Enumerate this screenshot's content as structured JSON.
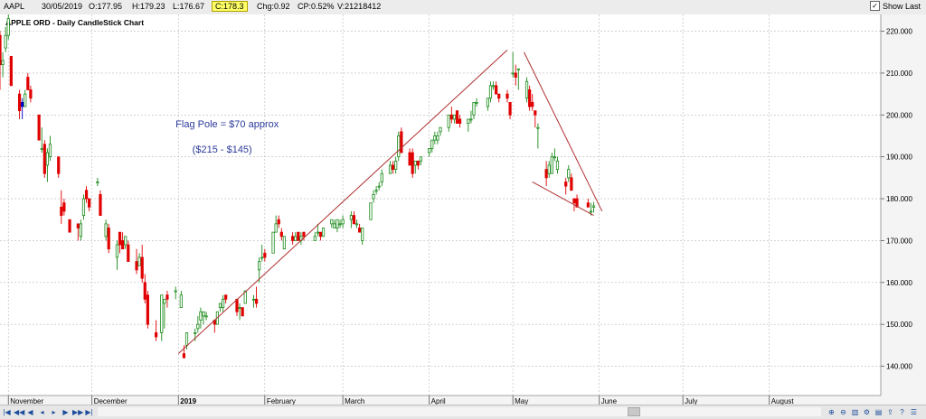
{
  "header": {
    "symbol": "AAPL",
    "date": "30/05/2019",
    "open": "O:177.95",
    "high": "H:179.23",
    "low": "L:176.67",
    "close": "C:178.3",
    "change": "Chg:0.92",
    "change_pct": "CP:0.52%",
    "volume": "V:21218412",
    "show_last_label": "Show Last",
    "show_last_checked": true
  },
  "chart_data": {
    "type": "candlestick",
    "title": "APPLE ORD - Daily CandleStick Chart",
    "ylim": [
      133,
      224
    ],
    "yticks": [
      140,
      150,
      160,
      170,
      180,
      190,
      200,
      210,
      220
    ],
    "ytick_labels": [
      "140.000",
      "150.000",
      "160.000",
      "170.000",
      "180.000",
      "190.000",
      "200.000",
      "210.000",
      "220.000"
    ],
    "x_range": [
      "2018-10-29",
      "2019-09-10"
    ],
    "month_labels": [
      {
        "date": "2018-11-01",
        "label": "November"
      },
      {
        "date": "2018-12-01",
        "label": "December"
      },
      {
        "date": "2019-01-01",
        "label": "2019",
        "bold": true
      },
      {
        "date": "2019-02-01",
        "label": "February"
      },
      {
        "date": "2019-03-01",
        "label": "March"
      },
      {
        "date": "2019-04-01",
        "label": "April"
      },
      {
        "date": "2019-05-01",
        "label": "May"
      },
      {
        "date": "2019-06-01",
        "label": "June"
      },
      {
        "date": "2019-07-01",
        "label": "July"
      },
      {
        "date": "2019-08-01",
        "label": "August"
      }
    ],
    "grid": true,
    "colors": {
      "up": "#1a8a1a",
      "down": "#e00000",
      "doji": "#0000cc",
      "trend": "#b03030",
      "annotation": "#2b3a9a"
    },
    "candles": [
      {
        "d": "2018-10-29",
        "o": 219,
        "h": 220,
        "l": 206,
        "c": 212
      },
      {
        "d": "2018-10-30",
        "o": 212,
        "h": 215,
        "l": 209,
        "c": 213
      },
      {
        "d": "2018-10-31",
        "o": 216,
        "h": 221,
        "l": 215,
        "c": 219
      },
      {
        "d": "2018-11-01",
        "o": 219,
        "h": 224,
        "l": 218,
        "c": 223
      },
      {
        "d": "2018-11-02",
        "o": 214,
        "h": 214,
        "l": 207,
        "c": 207
      },
      {
        "d": "2018-11-05",
        "o": 205,
        "h": 206,
        "l": 199,
        "c": 201
      },
      {
        "d": "2018-11-06",
        "o": 202,
        "h": 204,
        "l": 199,
        "c": 203,
        "doji": true
      },
      {
        "d": "2018-11-07",
        "o": 202,
        "h": 206,
        "l": 202,
        "c": 205
      },
      {
        "d": "2018-11-08",
        "o": 209,
        "h": 210,
        "l": 206,
        "c": 206
      },
      {
        "d": "2018-11-09",
        "o": 206,
        "h": 207,
        "l": 203,
        "c": 204
      },
      {
        "d": "2018-11-12",
        "o": 200,
        "h": 200,
        "l": 194,
        "c": 194
      },
      {
        "d": "2018-11-13",
        "o": 192,
        "h": 197,
        "l": 191,
        "c": 192
      },
      {
        "d": "2018-11-14",
        "o": 193,
        "h": 194,
        "l": 185,
        "c": 186
      },
      {
        "d": "2018-11-15",
        "o": 188,
        "h": 192,
        "l": 184,
        "c": 191
      },
      {
        "d": "2018-11-16",
        "o": 190,
        "h": 195,
        "l": 189,
        "c": 193
      },
      {
        "d": "2018-11-19",
        "o": 190,
        "h": 190,
        "l": 185,
        "c": 186
      },
      {
        "d": "2018-11-20",
        "o": 178,
        "h": 182,
        "l": 174,
        "c": 176
      },
      {
        "d": "2018-11-21",
        "o": 179,
        "h": 180,
        "l": 176,
        "c": 177
      },
      {
        "d": "2018-11-23",
        "o": 175,
        "h": 175,
        "l": 172,
        "c": 172
      },
      {
        "d": "2018-11-26",
        "o": 174,
        "h": 174,
        "l": 170,
        "c": 173
      },
      {
        "d": "2018-11-27",
        "o": 171,
        "h": 175,
        "l": 170,
        "c": 174
      },
      {
        "d": "2018-11-28",
        "o": 176,
        "h": 181,
        "l": 175,
        "c": 180
      },
      {
        "d": "2018-11-29",
        "o": 182,
        "h": 183,
        "l": 179,
        "c": 180
      },
      {
        "d": "2018-11-30",
        "o": 180,
        "h": 180,
        "l": 177,
        "c": 178
      },
      {
        "d": "2018-12-03",
        "o": 184,
        "h": 185,
        "l": 183,
        "c": 184
      },
      {
        "d": "2018-12-04",
        "o": 181,
        "h": 182,
        "l": 176,
        "c": 176
      },
      {
        "d": "2018-12-06",
        "o": 171,
        "h": 175,
        "l": 170,
        "c": 174
      },
      {
        "d": "2018-12-07",
        "o": 173,
        "h": 174,
        "l": 167,
        "c": 168
      },
      {
        "d": "2018-12-10",
        "o": 166,
        "h": 170,
        "l": 163,
        "c": 169
      },
      {
        "d": "2018-12-11",
        "o": 172,
        "h": 172,
        "l": 167,
        "c": 169
      },
      {
        "d": "2018-12-12",
        "o": 170,
        "h": 172,
        "l": 168,
        "c": 168
      },
      {
        "d": "2018-12-13",
        "o": 169,
        "h": 171,
        "l": 168,
        "c": 171
      },
      {
        "d": "2018-12-14",
        "o": 169,
        "h": 170,
        "l": 165,
        "c": 165
      },
      {
        "d": "2018-12-17",
        "o": 165,
        "h": 168,
        "l": 162,
        "c": 163
      },
      {
        "d": "2018-12-18",
        "o": 164,
        "h": 167,
        "l": 164,
        "c": 166
      },
      {
        "d": "2018-12-19",
        "o": 166,
        "h": 169,
        "l": 160,
        "c": 161
      },
      {
        "d": "2018-12-20",
        "o": 160,
        "h": 162,
        "l": 155,
        "c": 156
      },
      {
        "d": "2018-12-21",
        "o": 157,
        "h": 158,
        "l": 149,
        "c": 150
      },
      {
        "d": "2018-12-24",
        "o": 148,
        "h": 151,
        "l": 146,
        "c": 147
      },
      {
        "d": "2018-12-26",
        "o": 148,
        "h": 157,
        "l": 146,
        "c": 157
      },
      {
        "d": "2018-12-27",
        "o": 155,
        "h": 156,
        "l": 149,
        "c": 156
      },
      {
        "d": "2018-12-28",
        "o": 157,
        "h": 158,
        "l": 154,
        "c": 156
      },
      {
        "d": "2018-12-31",
        "o": 158,
        "h": 159,
        "l": 156,
        "c": 158
      },
      {
        "d": "2019-01-02",
        "o": 154,
        "h": 158,
        "l": 154,
        "c": 157
      },
      {
        "d": "2019-01-03",
        "o": 143,
        "h": 145,
        "l": 142,
        "c": 142
      },
      {
        "d": "2019-01-04",
        "o": 145,
        "h": 148,
        "l": 144,
        "c": 148
      },
      {
        "d": "2019-01-07",
        "o": 148,
        "h": 149,
        "l": 146,
        "c": 148
      },
      {
        "d": "2019-01-08",
        "o": 149,
        "h": 152,
        "l": 148,
        "c": 150
      },
      {
        "d": "2019-01-09",
        "o": 151,
        "h": 154,
        "l": 149,
        "c": 153
      },
      {
        "d": "2019-01-10",
        "o": 152,
        "h": 153,
        "l": 150,
        "c": 153
      },
      {
        "d": "2019-01-11",
        "o": 152,
        "h": 153,
        "l": 151,
        "c": 152
      },
      {
        "d": "2019-01-14",
        "o": 151,
        "h": 151,
        "l": 148,
        "c": 150
      },
      {
        "d": "2019-01-15",
        "o": 150,
        "h": 153,
        "l": 150,
        "c": 153
      },
      {
        "d": "2019-01-16",
        "o": 154,
        "h": 155,
        "l": 153,
        "c": 155
      },
      {
        "d": "2019-01-17",
        "o": 154,
        "h": 157,
        "l": 153,
        "c": 156
      },
      {
        "d": "2019-01-18",
        "o": 157,
        "h": 157,
        "l": 155,
        "c": 156
      },
      {
        "d": "2019-01-22",
        "o": 156,
        "h": 156,
        "l": 152,
        "c": 153
      },
      {
        "d": "2019-01-23",
        "o": 154,
        "h": 155,
        "l": 151,
        "c": 154
      },
      {
        "d": "2019-01-24",
        "o": 154,
        "h": 154,
        "l": 152,
        "c": 152
      },
      {
        "d": "2019-01-25",
        "o": 155,
        "h": 158,
        "l": 155,
        "c": 158
      },
      {
        "d": "2019-01-28",
        "o": 156,
        "h": 157,
        "l": 154,
        "c": 156
      },
      {
        "d": "2019-01-29",
        "o": 156,
        "h": 159,
        "l": 154,
        "c": 155
      },
      {
        "d": "2019-01-30",
        "o": 163,
        "h": 166,
        "l": 160,
        "c": 165
      },
      {
        "d": "2019-01-31",
        "o": 166,
        "h": 169,
        "l": 165,
        "c": 166
      },
      {
        "d": "2019-02-01",
        "o": 167,
        "h": 168,
        "l": 165,
        "c": 166
      },
      {
        "d": "2019-02-04",
        "o": 167,
        "h": 172,
        "l": 167,
        "c": 172
      },
      {
        "d": "2019-02-05",
        "o": 172,
        "h": 176,
        "l": 172,
        "c": 174
      },
      {
        "d": "2019-02-06",
        "o": 175,
        "h": 176,
        "l": 173,
        "c": 174
      },
      {
        "d": "2019-02-07",
        "o": 172,
        "h": 173,
        "l": 170,
        "c": 171
      },
      {
        "d": "2019-02-08",
        "o": 168,
        "h": 171,
        "l": 168,
        "c": 171
      },
      {
        "d": "2019-02-11",
        "o": 171,
        "h": 172,
        "l": 169,
        "c": 170
      },
      {
        "d": "2019-02-12",
        "o": 170,
        "h": 172,
        "l": 170,
        "c": 171
      },
      {
        "d": "2019-02-13",
        "o": 172,
        "h": 172,
        "l": 170,
        "c": 170
      },
      {
        "d": "2019-02-14",
        "o": 170,
        "h": 172,
        "l": 169,
        "c": 171
      },
      {
        "d": "2019-02-15",
        "o": 172,
        "h": 172,
        "l": 170,
        "c": 171
      },
      {
        "d": "2019-02-19",
        "o": 170,
        "h": 172,
        "l": 170,
        "c": 171
      },
      {
        "d": "2019-02-20",
        "o": 172,
        "h": 174,
        "l": 171,
        "c": 172
      },
      {
        "d": "2019-02-21",
        "o": 172,
        "h": 172,
        "l": 170,
        "c": 171
      },
      {
        "d": "2019-02-22",
        "o": 171,
        "h": 173,
        "l": 171,
        "c": 173
      },
      {
        "d": "2019-02-25",
        "o": 174,
        "h": 175,
        "l": 173,
        "c": 175
      },
      {
        "d": "2019-02-26",
        "o": 173,
        "h": 175,
        "l": 173,
        "c": 174
      },
      {
        "d": "2019-02-27",
        "o": 173,
        "h": 175,
        "l": 172,
        "c": 175
      },
      {
        "d": "2019-02-28",
        "o": 174,
        "h": 175,
        "l": 173,
        "c": 174
      },
      {
        "d": "2019-03-01",
        "o": 174,
        "h": 176,
        "l": 173,
        "c": 175
      },
      {
        "d": "2019-03-04",
        "o": 175,
        "h": 177,
        "l": 173,
        "c": 176
      },
      {
        "d": "2019-03-05",
        "o": 176,
        "h": 177,
        "l": 174,
        "c": 174
      },
      {
        "d": "2019-03-06",
        "o": 174,
        "h": 175,
        "l": 173,
        "c": 174
      },
      {
        "d": "2019-03-07",
        "o": 173,
        "h": 174,
        "l": 172,
        "c": 172
      },
      {
        "d": "2019-03-08",
        "o": 170,
        "h": 173,
        "l": 169,
        "c": 173
      },
      {
        "d": "2019-03-11",
        "o": 175,
        "h": 179,
        "l": 175,
        "c": 179
      },
      {
        "d": "2019-03-12",
        "o": 180,
        "h": 182,
        "l": 179,
        "c": 181
      },
      {
        "d": "2019-03-13",
        "o": 182,
        "h": 183,
        "l": 181,
        "c": 182
      },
      {
        "d": "2019-03-14",
        "o": 183,
        "h": 184,
        "l": 182,
        "c": 183
      },
      {
        "d": "2019-03-15",
        "o": 184,
        "h": 187,
        "l": 183,
        "c": 186
      },
      {
        "d": "2019-03-18",
        "o": 186,
        "h": 189,
        "l": 186,
        "c": 188
      },
      {
        "d": "2019-03-19",
        "o": 188,
        "h": 189,
        "l": 186,
        "c": 187
      },
      {
        "d": "2019-03-20",
        "o": 187,
        "h": 190,
        "l": 186,
        "c": 189
      },
      {
        "d": "2019-03-21",
        "o": 190,
        "h": 196,
        "l": 189,
        "c": 195
      },
      {
        "d": "2019-03-22",
        "o": 196,
        "h": 197,
        "l": 191,
        "c": 191
      },
      {
        "d": "2019-03-25",
        "o": 191,
        "h": 192,
        "l": 188,
        "c": 188
      },
      {
        "d": "2019-03-26",
        "o": 191,
        "h": 192,
        "l": 185,
        "c": 186
      },
      {
        "d": "2019-03-27",
        "o": 188,
        "h": 189,
        "l": 186,
        "c": 189
      },
      {
        "d": "2019-03-28",
        "o": 189,
        "h": 189,
        "l": 187,
        "c": 188
      },
      {
        "d": "2019-03-29",
        "o": 189,
        "h": 190,
        "l": 188,
        "c": 190
      },
      {
        "d": "2019-04-01",
        "o": 191,
        "h": 192,
        "l": 190,
        "c": 192
      },
      {
        "d": "2019-04-02",
        "o": 192,
        "h": 194,
        "l": 191,
        "c": 194
      },
      {
        "d": "2019-04-03",
        "o": 194,
        "h": 196,
        "l": 193,
        "c": 195
      },
      {
        "d": "2019-04-04",
        "o": 194,
        "h": 196,
        "l": 193,
        "c": 195
      },
      {
        "d": "2019-04-05",
        "o": 196,
        "h": 197,
        "l": 195,
        "c": 197
      },
      {
        "d": "2019-04-08",
        "o": 197,
        "h": 200,
        "l": 196,
        "c": 200
      },
      {
        "d": "2019-04-09",
        "o": 200,
        "h": 202,
        "l": 198,
        "c": 199
      },
      {
        "d": "2019-04-10",
        "o": 199,
        "h": 200,
        "l": 198,
        "c": 200
      },
      {
        "d": "2019-04-11",
        "o": 201,
        "h": 201,
        "l": 198,
        "c": 198
      },
      {
        "d": "2019-04-12",
        "o": 199,
        "h": 200,
        "l": 197,
        "c": 198
      },
      {
        "d": "2019-04-15",
        "o": 198,
        "h": 199,
        "l": 196,
        "c": 199
      },
      {
        "d": "2019-04-16",
        "o": 199,
        "h": 201,
        "l": 198,
        "c": 199
      },
      {
        "d": "2019-04-17",
        "o": 200,
        "h": 203,
        "l": 199,
        "c": 203
      },
      {
        "d": "2019-04-18",
        "o": 203,
        "h": 204,
        "l": 202,
        "c": 203
      },
      {
        "d": "2019-04-22",
        "o": 202,
        "h": 204,
        "l": 201,
        "c": 204
      },
      {
        "d": "2019-04-23",
        "o": 204,
        "h": 208,
        "l": 203,
        "c": 207
      },
      {
        "d": "2019-04-24",
        "o": 207,
        "h": 208,
        "l": 206,
        "c": 207
      },
      {
        "d": "2019-04-25",
        "o": 207,
        "h": 208,
        "l": 205,
        "c": 205
      },
      {
        "d": "2019-04-26",
        "o": 205,
        "h": 205,
        "l": 203,
        "c": 204
      },
      {
        "d": "2019-04-29",
        "o": 205,
        "h": 206,
        "l": 203,
        "c": 204
      },
      {
        "d": "2019-04-30",
        "o": 203,
        "h": 203,
        "l": 199,
        "c": 200
      },
      {
        "d": "2019-05-01",
        "o": 210,
        "h": 215,
        "l": 209,
        "c": 210
      },
      {
        "d": "2019-05-02",
        "o": 210,
        "h": 212,
        "l": 207,
        "c": 209
      },
      {
        "d": "2019-05-03",
        "o": 211,
        "h": 211,
        "l": 206,
        "c": 211
      },
      {
        "d": "2019-05-06",
        "o": 204,
        "h": 209,
        "l": 203,
        "c": 208
      },
      {
        "d": "2019-05-07",
        "o": 206,
        "h": 207,
        "l": 201,
        "c": 202
      },
      {
        "d": "2019-05-08",
        "o": 203,
        "h": 205,
        "l": 201,
        "c": 202
      },
      {
        "d": "2019-05-09",
        "o": 201,
        "h": 201,
        "l": 197,
        "c": 200
      },
      {
        "d": "2019-05-10",
        "o": 197,
        "h": 198,
        "l": 192,
        "c": 197
      },
      {
        "d": "2019-05-13",
        "o": 187,
        "h": 189,
        "l": 183,
        "c": 185
      },
      {
        "d": "2019-05-14",
        "o": 186,
        "h": 189,
        "l": 185,
        "c": 188
      },
      {
        "d": "2019-05-15",
        "o": 186,
        "h": 191,
        "l": 186,
        "c": 190
      },
      {
        "d": "2019-05-16",
        "o": 190,
        "h": 192,
        "l": 189,
        "c": 190
      },
      {
        "d": "2019-05-17",
        "o": 187,
        "h": 190,
        "l": 186,
        "c": 189
      },
      {
        "d": "2019-05-20",
        "o": 184,
        "h": 185,
        "l": 181,
        "c": 183
      },
      {
        "d": "2019-05-21",
        "o": 185,
        "h": 188,
        "l": 184,
        "c": 187
      },
      {
        "d": "2019-05-22",
        "o": 185,
        "h": 186,
        "l": 182,
        "c": 182
      },
      {
        "d": "2019-05-23",
        "o": 180,
        "h": 180,
        "l": 177,
        "c": 179
      },
      {
        "d": "2019-05-24",
        "o": 180,
        "h": 181,
        "l": 178,
        "c": 178
      },
      {
        "d": "2019-05-28",
        "o": 179,
        "h": 180,
        "l": 178,
        "c": 178
      },
      {
        "d": "2019-05-29",
        "o": 177,
        "h": 179,
        "l": 176,
        "c": 177
      },
      {
        "d": "2019-05-30",
        "o": 177.95,
        "h": 179.23,
        "l": 176.67,
        "c": 178.3
      }
    ],
    "trendlines": [
      {
        "name": "uptrend",
        "p1": {
          "d": "2019-01-01",
          "v": 143
        },
        "p2": {
          "d": "2019-04-29",
          "v": 215.5
        }
      },
      {
        "name": "downtrend-upper",
        "p1": {
          "d": "2019-05-05",
          "v": 215
        },
        "p2": {
          "d": "2019-06-02",
          "v": 177
        }
      },
      {
        "name": "downtrend-lower",
        "p1": {
          "d": "2019-05-08",
          "v": 184
        },
        "p2": {
          "d": "2019-05-30",
          "v": 176
        }
      }
    ],
    "annotations": [
      {
        "text": "Flag Pole = $70 approx",
        "d": "2018-12-31",
        "v": 197
      },
      {
        "text": "($215 - $145)",
        "d": "2019-01-06",
        "v": 191
      }
    ]
  }
}
